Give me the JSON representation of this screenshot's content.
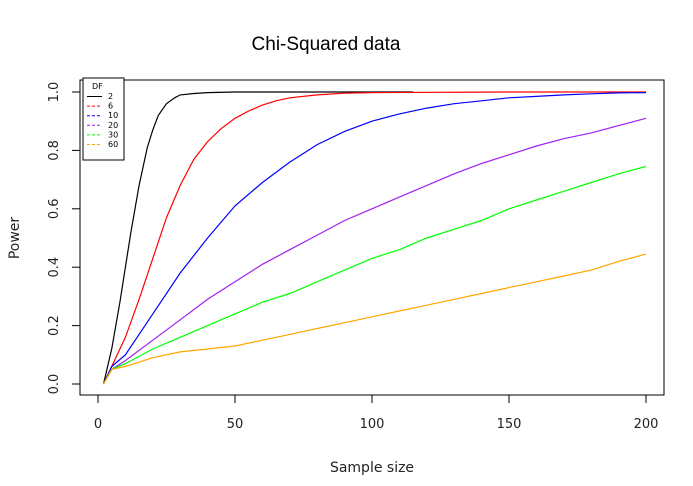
{
  "chart_data": {
    "type": "line",
    "title": "Chi-Squared data",
    "xlabel": "Sample size",
    "ylabel": "Power",
    "xlim": [
      2,
      200
    ],
    "ylim": [
      0,
      1
    ],
    "xticks": [
      0,
      50,
      100,
      150,
      200
    ],
    "yticks": [
      0.0,
      0.2,
      0.4,
      0.6,
      0.8,
      1.0
    ],
    "ytick_labels": [
      "0.0",
      "0.2",
      "0.4",
      "0.6",
      "0.8",
      "1.0"
    ],
    "grid": false,
    "legend": {
      "title": "DF",
      "placement": "top-left"
    },
    "series": [
      {
        "name": "2",
        "color": "#000000",
        "dash": "solid",
        "x": [
          2,
          5,
          8,
          10,
          12,
          15,
          18,
          20,
          22,
          25,
          28,
          30,
          35,
          40,
          50,
          60,
          80,
          100,
          115
        ],
        "y": [
          0.0,
          0.12,
          0.28,
          0.4,
          0.52,
          0.68,
          0.81,
          0.87,
          0.92,
          0.96,
          0.98,
          0.99,
          0.995,
          0.998,
          1.0,
          1.0,
          1.0,
          1.0,
          1.0
        ]
      },
      {
        "name": "6",
        "color": "#ff0000",
        "dash": "dashed",
        "x": [
          2,
          5,
          10,
          15,
          20,
          25,
          30,
          35,
          40,
          45,
          50,
          55,
          60,
          65,
          70,
          80,
          90,
          100,
          150,
          200
        ],
        "y": [
          0.0,
          0.06,
          0.16,
          0.29,
          0.43,
          0.57,
          0.68,
          0.77,
          0.83,
          0.875,
          0.91,
          0.935,
          0.955,
          0.97,
          0.98,
          0.99,
          0.996,
          0.998,
          1.0,
          1.0
        ]
      },
      {
        "name": "10",
        "color": "#0000ff",
        "dash": "dashed",
        "x": [
          2,
          5,
          10,
          20,
          30,
          40,
          50,
          60,
          70,
          80,
          90,
          100,
          110,
          120,
          130,
          140,
          150,
          160,
          170,
          180,
          190,
          200
        ],
        "y": [
          0.0,
          0.06,
          0.1,
          0.24,
          0.38,
          0.5,
          0.61,
          0.69,
          0.76,
          0.82,
          0.865,
          0.9,
          0.925,
          0.945,
          0.96,
          0.97,
          0.98,
          0.985,
          0.99,
          0.994,
          0.997,
          0.998
        ]
      },
      {
        "name": "20",
        "color": "#a020f0",
        "dash": "dashed",
        "x": [
          2,
          5,
          10,
          20,
          30,
          40,
          50,
          60,
          70,
          80,
          90,
          100,
          110,
          120,
          130,
          140,
          150,
          160,
          170,
          180,
          190,
          200
        ],
        "y": [
          0.0,
          0.05,
          0.08,
          0.15,
          0.22,
          0.29,
          0.35,
          0.41,
          0.46,
          0.51,
          0.56,
          0.6,
          0.64,
          0.68,
          0.72,
          0.755,
          0.785,
          0.815,
          0.84,
          0.86,
          0.885,
          0.91
        ]
      },
      {
        "name": "30",
        "color": "#00ff00",
        "dash": "dashed",
        "x": [
          2,
          5,
          10,
          20,
          30,
          40,
          50,
          60,
          70,
          80,
          90,
          100,
          110,
          120,
          130,
          140,
          150,
          160,
          170,
          180,
          190,
          200
        ],
        "y": [
          0.0,
          0.05,
          0.07,
          0.12,
          0.16,
          0.2,
          0.24,
          0.28,
          0.31,
          0.35,
          0.39,
          0.43,
          0.46,
          0.5,
          0.53,
          0.56,
          0.6,
          0.63,
          0.66,
          0.69,
          0.72,
          0.745
        ]
      },
      {
        "name": "60",
        "color": "#ffa500",
        "dash": "dashed",
        "x": [
          2,
          5,
          10,
          20,
          30,
          40,
          50,
          60,
          70,
          80,
          90,
          100,
          110,
          120,
          130,
          140,
          150,
          160,
          170,
          180,
          190,
          200
        ],
        "y": [
          0.0,
          0.05,
          0.06,
          0.09,
          0.11,
          0.12,
          0.13,
          0.15,
          0.17,
          0.19,
          0.21,
          0.23,
          0.25,
          0.27,
          0.29,
          0.31,
          0.33,
          0.35,
          0.37,
          0.39,
          0.42,
          0.445
        ]
      }
    ]
  }
}
